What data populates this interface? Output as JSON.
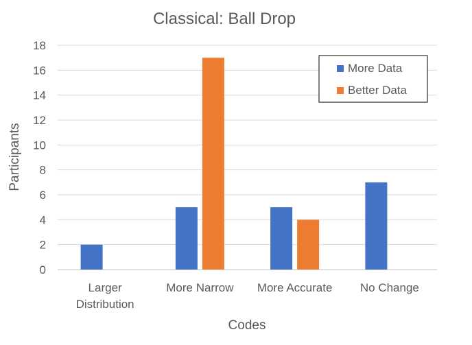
{
  "chart_data": {
    "type": "bar",
    "title": "Classical: Ball Drop",
    "xlabel": "Codes",
    "ylabel": "Participants",
    "categories": [
      [
        "Larger",
        "Distribution"
      ],
      [
        "More Narrow"
      ],
      [
        "More Accurate"
      ],
      [
        "No Change"
      ]
    ],
    "series": [
      {
        "name": "More Data",
        "color": "#4472C4",
        "values": [
          2,
          5,
          5,
          7
        ]
      },
      {
        "name": "Better Data",
        "color": "#ED7D31",
        "values": [
          0,
          17,
          4,
          0
        ]
      }
    ],
    "ylim": [
      0,
      18
    ],
    "yticks": [
      0,
      2,
      4,
      6,
      8,
      10,
      12,
      14,
      16,
      18
    ],
    "grid": true,
    "legend_position": "top-right"
  }
}
